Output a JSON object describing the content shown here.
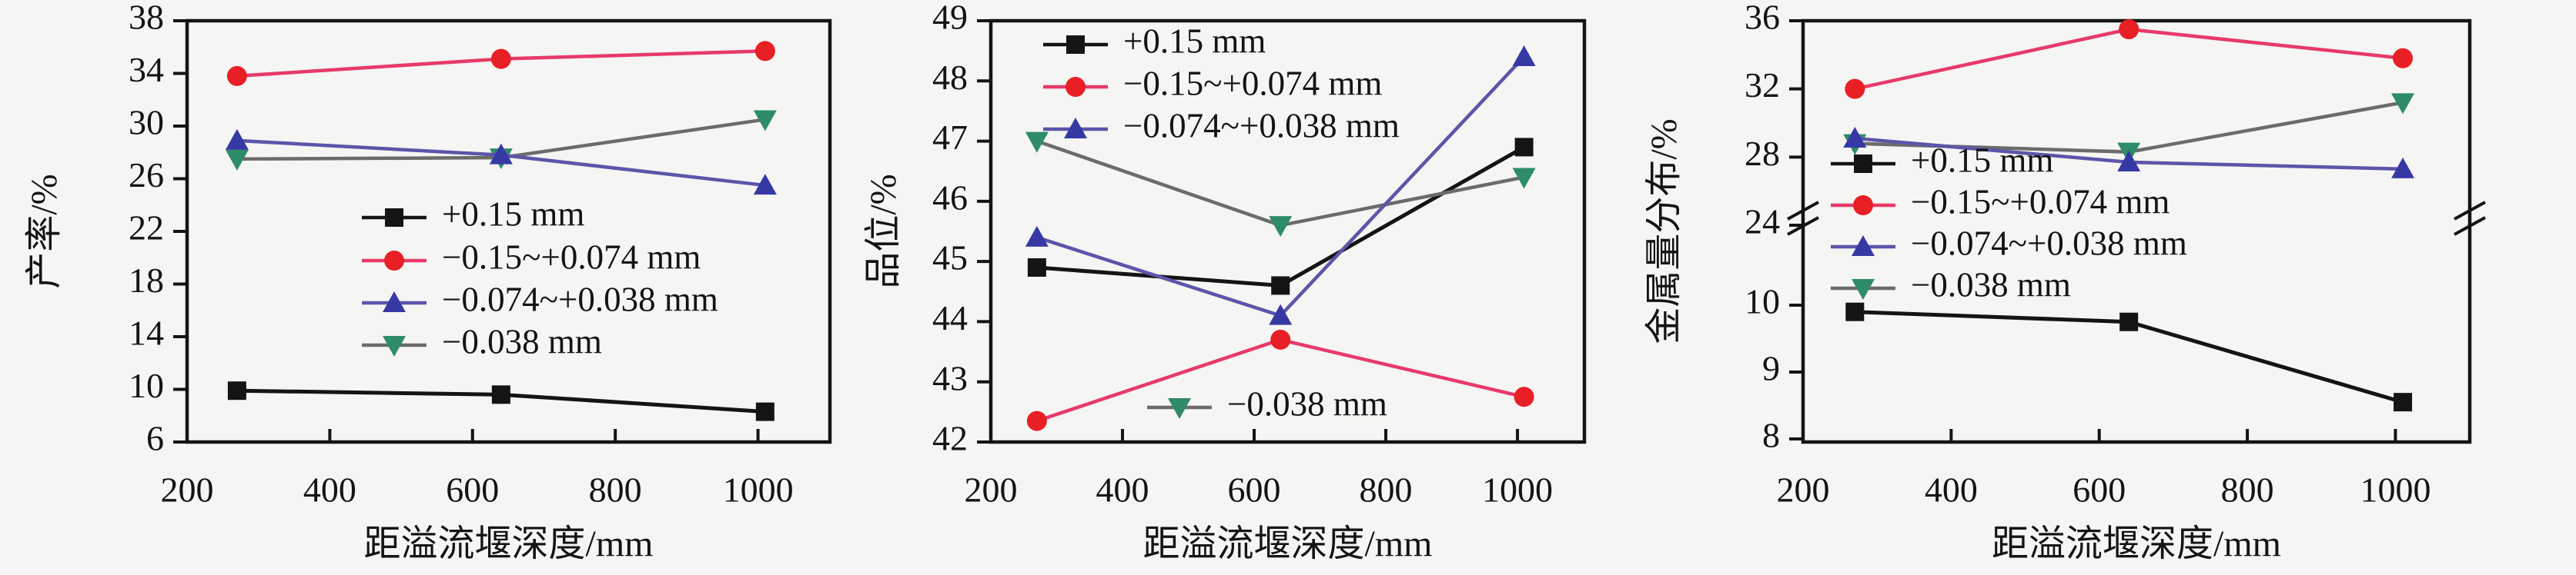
{
  "background": "#f5f5f3",
  "frame_color": "#141414",
  "x_axis": {
    "label": "距溢流堰深度/mm",
    "ticks": [
      200,
      400,
      600,
      800,
      1000
    ],
    "range": [
      200,
      1090
    ]
  },
  "series_labels": [
    "+0.15 mm",
    "−0.15~+0.074 mm",
    "−0.074~+0.038 mm",
    "−0.038 mm"
  ],
  "series_styles": [
    {
      "icon": "square-marker-icon",
      "marker": "square",
      "marker_color": "#141414",
      "line_color": "#141414"
    },
    {
      "icon": "circle-marker-icon",
      "marker": "circle",
      "marker_color": "#e81f24",
      "line_color": "#e73a69"
    },
    {
      "icon": "triangle-up-marker-icon",
      "marker": "triangle-up",
      "marker_color": "#3639a4",
      "line_color": "#5b55aa"
    },
    {
      "icon": "triangle-down-marker-icon",
      "marker": "triangle-down",
      "marker_color": "#2e8c68",
      "line_color": "#6b6b6b"
    }
  ],
  "chart_data": [
    {
      "type": "line",
      "panel": "left",
      "title": "",
      "xlabel": "距溢流堰深度/mm",
      "ylabel": "产率/%",
      "x": [
        270,
        640,
        1010
      ],
      "ylim": [
        6,
        38
      ],
      "yticks": [
        6,
        10,
        14,
        18,
        22,
        26,
        30,
        34,
        38
      ],
      "grid": false,
      "legend_position": "inside middle-left",
      "series": [
        {
          "name": "+0.15 mm",
          "values": [
            9.9,
            9.6,
            8.3
          ]
        },
        {
          "name": "−0.15~+0.074 mm",
          "values": [
            33.8,
            35.1,
            35.7
          ]
        },
        {
          "name": "−0.074~+0.038 mm",
          "values": [
            28.9,
            27.8,
            25.5
          ]
        },
        {
          "name": "−0.038 mm",
          "values": [
            27.5,
            27.6,
            30.5
          ]
        }
      ]
    },
    {
      "type": "line",
      "panel": "middle",
      "title": "",
      "xlabel": "距溢流堰深度/mm",
      "ylabel": "品位/%",
      "x": [
        270,
        640,
        1010
      ],
      "ylim": [
        42,
        49
      ],
      "yticks": [
        42,
        43,
        44,
        45,
        46,
        47,
        48,
        49
      ],
      "grid": false,
      "legend_position": "first three inside top-left, −0.038 mm separate inside bottom-center",
      "series": [
        {
          "name": "+0.15 mm",
          "values": [
            44.9,
            44.6,
            46.9
          ]
        },
        {
          "name": "−0.15~+0.074 mm",
          "values": [
            42.35,
            43.7,
            42.75
          ]
        },
        {
          "name": "−0.074~+0.038 mm",
          "values": [
            45.4,
            44.1,
            48.4
          ]
        },
        {
          "name": "−0.038 mm",
          "values": [
            47.0,
            45.6,
            46.4
          ]
        }
      ]
    },
    {
      "type": "line",
      "panel": "right",
      "title": "",
      "xlabel": "距溢流堰深度/mm",
      "ylabel": "金属量分布/%",
      "x": [
        270,
        640,
        1010
      ],
      "broken_axis": true,
      "ylim_upper": [
        24,
        36
      ],
      "ylim_lower": [
        8,
        10
      ],
      "yticks_upper": [
        24,
        28,
        32,
        36
      ],
      "yticks_lower": [
        8,
        9,
        10
      ],
      "grid": false,
      "legend_position": "inside middle-left",
      "series": [
        {
          "name": "+0.15 mm",
          "values": [
            9.9,
            9.75,
            8.55
          ]
        },
        {
          "name": "−0.15~+0.074 mm",
          "values": [
            32.0,
            35.5,
            33.8
          ]
        },
        {
          "name": "−0.074~+0.038 mm",
          "values": [
            29.1,
            27.7,
            27.3
          ]
        },
        {
          "name": "−0.038 mm",
          "values": [
            28.8,
            28.3,
            31.2
          ]
        }
      ]
    }
  ]
}
